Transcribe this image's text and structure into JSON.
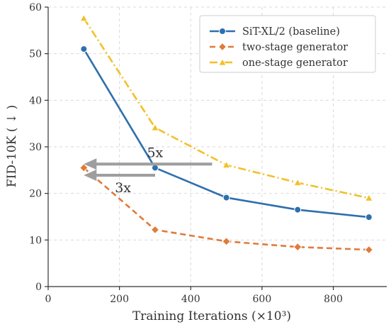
{
  "chart_data": {
    "type": "line",
    "title": "",
    "xlabel": "Training Iterations (×10³)",
    "ylabel": "FID-10K ( ↓ )",
    "xlim": [
      0,
      950
    ],
    "ylim": [
      0,
      60
    ],
    "xticks": [
      0,
      200,
      400,
      600,
      800
    ],
    "yticks": [
      0,
      10,
      20,
      30,
      40,
      50,
      60
    ],
    "grid": true,
    "legend_position": "top-right",
    "x": [
      100,
      300,
      500,
      700,
      900
    ],
    "series": [
      {
        "name": "SiT-XL/2 (baseline)",
        "values": [
          51.0,
          25.5,
          19.1,
          16.5,
          14.9
        ],
        "color": "#2f6fad",
        "marker": "circle",
        "line_style": "solid"
      },
      {
        "name": "two-stage generator",
        "values": [
          25.5,
          12.2,
          9.7,
          8.5,
          7.9
        ],
        "color": "#e07b39",
        "marker": "diamond",
        "line_style": "dashed"
      },
      {
        "name": "one-stage generator",
        "values": [
          57.6,
          34.1,
          26.1,
          22.3,
          19.0
        ],
        "color": "#f2c027",
        "marker": "triangle",
        "line_style": "dashdot"
      }
    ],
    "annotations": [
      {
        "label": "5x",
        "from": [
          460,
          26.3
        ],
        "to": [
          100,
          26.3
        ],
        "color": "#9e9e9e"
      },
      {
        "label": "3x",
        "from": [
          300,
          23.9
        ],
        "to": [
          100,
          23.9
        ],
        "color": "#9e9e9e"
      }
    ]
  }
}
